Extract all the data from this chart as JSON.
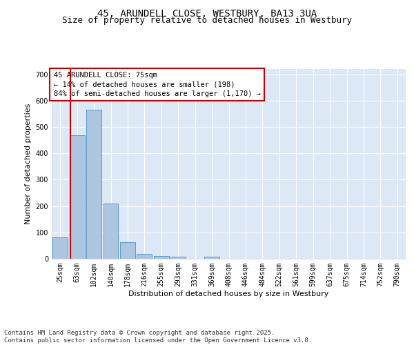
{
  "title": "45, ARUNDELL CLOSE, WESTBURY, BA13 3UA",
  "subtitle": "Size of property relative to detached houses in Westbury",
  "xlabel": "Distribution of detached houses by size in Westbury",
  "ylabel": "Number of detached properties",
  "categories": [
    "25sqm",
    "63sqm",
    "102sqm",
    "140sqm",
    "178sqm",
    "216sqm",
    "255sqm",
    "293sqm",
    "331sqm",
    "369sqm",
    "408sqm",
    "446sqm",
    "484sqm",
    "522sqm",
    "561sqm",
    "599sqm",
    "637sqm",
    "675sqm",
    "714sqm",
    "752sqm",
    "790sqm"
  ],
  "bar_values": [
    80,
    468,
    565,
    210,
    62,
    18,
    10,
    7,
    0,
    8,
    0,
    0,
    0,
    0,
    0,
    0,
    0,
    0,
    0,
    0,
    0
  ],
  "bar_color": "#adc6e0",
  "bar_edge_color": "#5b9bd5",
  "vline_color": "#cc0000",
  "annotation_text": "45 ARUNDELL CLOSE: 75sqm\n← 14% of detached houses are smaller (198)\n84% of semi-detached houses are larger (1,170) →",
  "annotation_box_color": "#cc0000",
  "ylim": [
    0,
    720
  ],
  "yticks": [
    0,
    100,
    200,
    300,
    400,
    500,
    600,
    700
  ],
  "background_color": "#dce8f5",
  "footer_text": "Contains HM Land Registry data © Crown copyright and database right 2025.\nContains public sector information licensed under the Open Government Licence v3.0.",
  "title_fontsize": 10,
  "subtitle_fontsize": 9,
  "axis_label_fontsize": 8,
  "tick_label_fontsize": 7,
  "annotation_fontsize": 7.5,
  "footer_fontsize": 6.5
}
